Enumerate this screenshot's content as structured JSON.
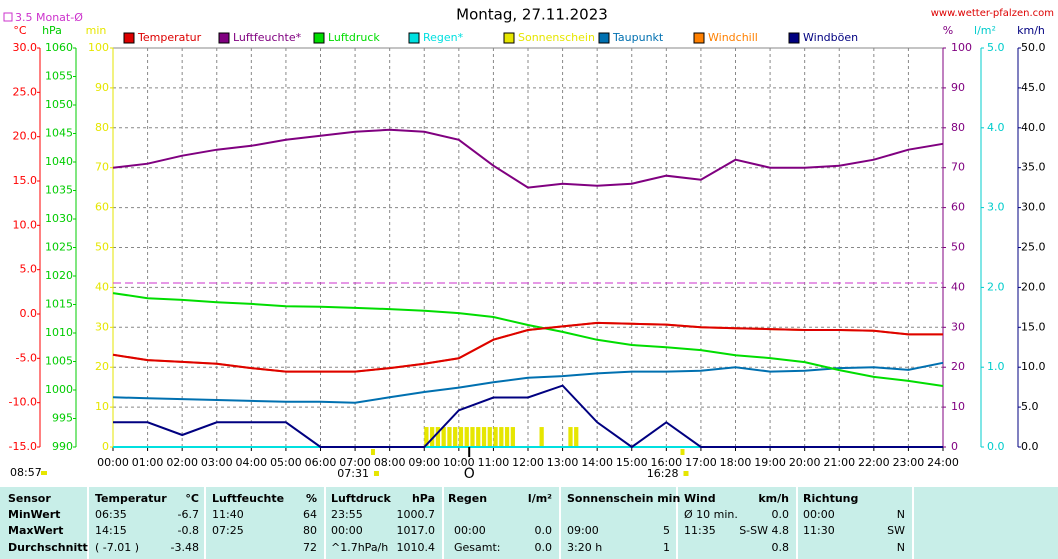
{
  "chart_data": {
    "type": "line",
    "title": "Montag, 27.11.2023",
    "site": "www.wetter-pfalzen.com",
    "time": "08:57",
    "reference": {
      "value": 3.5,
      "label": "3.5 Monat-Ø",
      "color": "#cc33cc",
      "axis": 0
    },
    "grid": true,
    "xlim": [
      0,
      24
    ],
    "xticks": [
      {
        "value": 0,
        "label": "00:00"
      },
      {
        "value": 1,
        "label": "01:00"
      },
      {
        "value": 2,
        "label": "02:00"
      },
      {
        "value": 3,
        "label": "03:00"
      },
      {
        "value": 4,
        "label": "04:00"
      },
      {
        "value": 5,
        "label": "05:00"
      },
      {
        "value": 6,
        "label": "06:00"
      },
      {
        "value": 7,
        "label": "07:00"
      },
      {
        "value": 8,
        "label": "08:00"
      },
      {
        "value": 9,
        "label": "09:00"
      },
      {
        "value": 10,
        "label": "10:00"
      },
      {
        "value": 11,
        "label": "11:00"
      },
      {
        "value": 12,
        "label": "12:00"
      },
      {
        "value": 13,
        "label": "13:00"
      },
      {
        "value": 14,
        "label": "14:00"
      },
      {
        "value": 15,
        "label": "15:00"
      },
      {
        "value": 16,
        "label": "16:00"
      },
      {
        "value": 17,
        "label": "17:00"
      },
      {
        "value": 18,
        "label": "18:00"
      },
      {
        "value": 19,
        "label": "19:00"
      },
      {
        "value": 20,
        "label": "20:00"
      },
      {
        "value": 21,
        "label": "21:00"
      },
      {
        "value": 22,
        "label": "22:00"
      },
      {
        "value": 23,
        "label": "23:00"
      },
      {
        "value": 24,
        "label": "24:00"
      }
    ],
    "sun": [
      {
        "x": 7.517,
        "label": "07:31"
      },
      {
        "x": 16.467,
        "label": "16:28"
      }
    ],
    "moon": {
      "x": 10.3,
      "label": "O"
    },
    "axes": [
      {
        "unit": "°C",
        "color": "#ff0000",
        "side": "left",
        "lim": [
          -15,
          30
        ],
        "ticks": [
          {
            "value": -15,
            "label": "-15.0"
          },
          {
            "value": -10,
            "label": "-10.0"
          },
          {
            "value": -5,
            "label": "-5.0"
          },
          {
            "value": 0,
            "label": "0.0"
          },
          {
            "value": 5,
            "label": "5.0"
          },
          {
            "value": 10,
            "label": "10.0"
          },
          {
            "value": 15,
            "label": "15.0"
          },
          {
            "value": 20,
            "label": "20.0"
          },
          {
            "value": 25,
            "label": "25.0"
          },
          {
            "value": 30,
            "label": "30.0"
          }
        ]
      },
      {
        "unit": "hPa",
        "color": "#00cc00",
        "side": "left",
        "lim": [
          990,
          1060
        ],
        "ticks": [
          990,
          995,
          1000,
          1005,
          1010,
          1015,
          1020,
          1025,
          1030,
          1035,
          1040,
          1045,
          1050,
          1055,
          1060
        ]
      },
      {
        "unit": "min",
        "color": "#e6e600",
        "side": "left",
        "lim": [
          0,
          100
        ],
        "ticks": [
          0,
          10,
          20,
          30,
          40,
          50,
          60,
          70,
          80,
          90,
          100
        ]
      },
      {
        "unit": "%",
        "color": "#800080",
        "side": "right",
        "lim": [
          0,
          100
        ],
        "ticks": [
          0,
          10,
          20,
          30,
          40,
          50,
          60,
          70,
          80,
          90,
          100
        ]
      },
      {
        "unit": "l/m²",
        "color": "#00cccc",
        "side": "right",
        "lim": [
          0,
          5
        ],
        "ticks": [
          {
            "value": 0,
            "label": "0.0"
          },
          {
            "value": 1,
            "label": "1.0"
          },
          {
            "value": 2,
            "label": "2.0"
          },
          {
            "value": 3,
            "label": "3.0"
          },
          {
            "value": 4,
            "label": "4.0"
          },
          {
            "value": 5,
            "label": "5.0"
          }
        ]
      },
      {
        "unit": "km/h",
        "color": "#000080",
        "side": "right",
        "lim": [
          0,
          50
        ],
        "ticks": [
          {
            "value": 0,
            "label": "0.0"
          },
          {
            "value": 5,
            "label": "5.0"
          },
          {
            "value": 10,
            "label": "10.0"
          },
          {
            "value": 15,
            "label": "15.0"
          },
          {
            "value": 20,
            "label": "20.0"
          },
          {
            "value": 25,
            "label": "25.0"
          },
          {
            "value": 30,
            "label": "30.0"
          },
          {
            "value": 35,
            "label": "35.0"
          },
          {
            "value": 40,
            "label": "40.0"
          },
          {
            "value": 45,
            "label": "45.0"
          },
          {
            "value": 50,
            "label": "50.0"
          }
        ]
      }
    ],
    "x": [
      0,
      1,
      2,
      3,
      4,
      5,
      6,
      7,
      8,
      9,
      10,
      11,
      12,
      13,
      14,
      15,
      16,
      17,
      18,
      19,
      20,
      21,
      22,
      23,
      24
    ],
    "series": [
      {
        "name": "Temperatur",
        "color": "#dd0000",
        "axis": 0,
        "values": [
          -4.6,
          -5.2,
          -5.4,
          -5.6,
          -6.1,
          -6.5,
          -6.5,
          -6.5,
          -6.1,
          -5.6,
          -5.0,
          -2.9,
          -1.8,
          -1.4,
          -1.0,
          -1.1,
          -1.2,
          -1.5,
          -1.6,
          -1.7,
          -1.8,
          -1.8,
          -1.9,
          -2.3,
          -2.3
        ]
      },
      {
        "name": "Luftfeuchte*",
        "color": "#800080",
        "axis": 3,
        "values": [
          70,
          71,
          73,
          74.5,
          75.5,
          77,
          78,
          79,
          79.5,
          79,
          77,
          70.5,
          65,
          66,
          65.5,
          66,
          68,
          67,
          72,
          70,
          70,
          70.5,
          72,
          74.5,
          76
        ]
      },
      {
        "name": "Luftdruck",
        "color": "#00dd00",
        "axis": 1,
        "values": [
          1017.0,
          1016.1,
          1015.8,
          1015.4,
          1015.1,
          1014.7,
          1014.6,
          1014.4,
          1014.2,
          1013.9,
          1013.5,
          1012.8,
          1011.4,
          1010.2,
          1008.8,
          1007.9,
          1007.5,
          1007.0,
          1006.1,
          1005.6,
          1004.9,
          1003.5,
          1002.3,
          1001.6,
          1000.7
        ]
      },
      {
        "name": "Regen*",
        "color": "#00e0e0",
        "axis": 4,
        "values": [
          0,
          0,
          0,
          0,
          0,
          0,
          0,
          0,
          0,
          0,
          0,
          0,
          0,
          0,
          0,
          0,
          0,
          0,
          0,
          0,
          0,
          0,
          0,
          0,
          0
        ]
      },
      {
        "name": "Sonnenschein",
        "color": "#e6e600",
        "axis": 2,
        "type": "bar",
        "x": [
          9.0,
          9.167,
          9.333,
          9.5,
          9.667,
          9.833,
          10.0,
          10.167,
          10.333,
          10.5,
          10.667,
          10.833,
          11.0,
          11.167,
          11.333,
          11.5,
          12.333,
          13.167,
          13.333
        ],
        "values": [
          5,
          5,
          5,
          5,
          5,
          5,
          5,
          5,
          5,
          5,
          5,
          5,
          5,
          5,
          5,
          5,
          5,
          5,
          5
        ]
      },
      {
        "name": "Taupunkt",
        "color": "#0070b0",
        "axis": 0,
        "values": [
          -9.4,
          -9.5,
          -9.6,
          -9.7,
          -9.8,
          -9.9,
          -9.9,
          -10.0,
          -9.4,
          -8.8,
          -8.3,
          -7.7,
          -7.2,
          -7.0,
          -6.7,
          -6.5,
          -6.5,
          -6.4,
          -6.0,
          -6.5,
          -6.4,
          -6.1,
          -6.0,
          -6.3,
          -5.5
        ]
      },
      {
        "name": "Windchill",
        "color": "#ff8000",
        "axis": 0,
        "values": [
          -4.6,
          -5.2,
          -5.4,
          -5.6,
          -6.1,
          -6.5,
          -6.5,
          -6.5,
          -6.1,
          -5.6,
          -5.0,
          -2.9,
          -1.8,
          -1.4,
          -1.0,
          -1.1,
          -1.2,
          -1.5,
          -1.6,
          -1.7,
          -1.8,
          -1.8,
          -1.9,
          -2.3,
          -2.3
        ]
      },
      {
        "name": "Windböen",
        "color": "#000080",
        "axis": 5,
        "values": [
          3.1,
          3.1,
          1.5,
          3.1,
          3.1,
          3.1,
          0,
          0,
          0,
          0,
          4.6,
          6.2,
          6.2,
          7.7,
          3.1,
          0,
          3.1,
          0,
          0,
          0,
          0,
          0,
          0,
          0,
          0
        ]
      }
    ]
  },
  "table": {
    "columns": [
      {
        "name": "Sensor"
      },
      {
        "name": "Temperatur",
        "unit": "°C"
      },
      {
        "name": "Luftfeuchte",
        "unit": "%"
      },
      {
        "name": "Luftdruck",
        "unit": "hPa"
      },
      {
        "name": "Regen",
        "unit": "l/m²"
      },
      {
        "name": "Sonnenschein min"
      },
      {
        "name": "Wind",
        "unit": "km/h"
      },
      {
        "name": "Richtung"
      }
    ],
    "rows": [
      {
        "label": "MinWert",
        "cells": [
          {
            "left": "06:35",
            "right": "-6.7"
          },
          {
            "left": "11:40",
            "right": "64"
          },
          {
            "left": "23:55",
            "right": "1000.7"
          },
          {},
          {},
          {
            "left": "Ø 10 min.",
            "right": "0.0"
          },
          {
            "left": "00:00",
            "right": "N"
          }
        ]
      },
      {
        "label": "MaxWert",
        "cells": [
          {
            "left": "14:15",
            "right": "-0.8"
          },
          {
            "left": "07:25",
            "right": "80"
          },
          {
            "left": "00:00",
            "right": "1017.0"
          },
          {
            "left": "00:00",
            "right": "0.0"
          },
          {
            "left": "09:00",
            "right": "5"
          },
          {
            "left": "11:35",
            "right": "S-SW 4.8"
          },
          {
            "left": "11:30",
            "right": "SW"
          }
        ]
      },
      {
        "label": "Durchschnitt",
        "cells": [
          {
            "left": "( -7.01 )",
            "right": "-3.48"
          },
          {
            "right": "72"
          },
          {
            "left": "^1.7hPa/h",
            "right": "1010.4"
          },
          {
            "left": "Gesamt:",
            "right": "0.0"
          },
          {
            "left": "3:20 h",
            "right": "1"
          },
          {
            "right": "0.8"
          },
          {
            "right": "N"
          }
        ]
      }
    ]
  }
}
